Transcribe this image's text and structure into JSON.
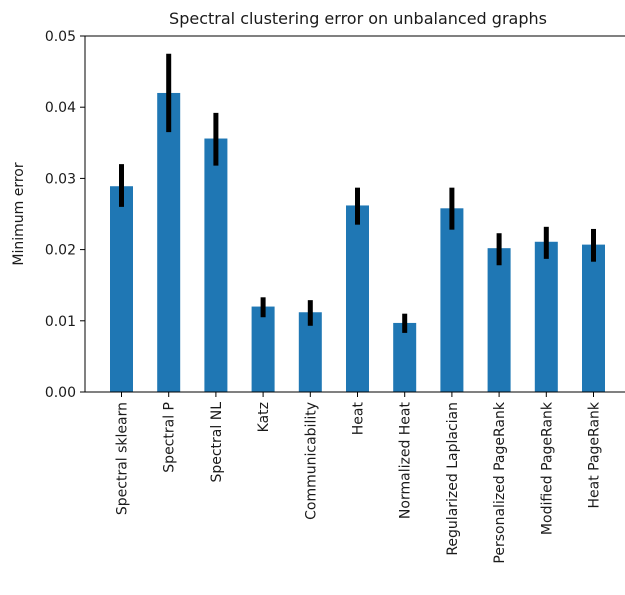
{
  "chart_data": {
    "type": "bar",
    "title": "Spectral clustering error on unbalanced graphs",
    "xlabel": "",
    "ylabel": "Minimum error",
    "ylim": [
      0,
      0.05
    ],
    "yticks": [
      "0.00",
      "0.01",
      "0.02",
      "0.03",
      "0.04",
      "0.05"
    ],
    "categories": [
      "Spectral sklearn",
      "Spectral P",
      "Spectral NL",
      "Katz",
      "Communicability",
      "Heat",
      "Normalized Heat",
      "Regularized Laplacian",
      "Personalized PageRank",
      "Modified PageRank",
      "Heat PageRank"
    ],
    "values": [
      0.0289,
      0.042,
      0.0356,
      0.012,
      0.0112,
      0.0262,
      0.0097,
      0.0258,
      0.0202,
      0.0211,
      0.0207
    ],
    "error_low": [
      0.026,
      0.0365,
      0.0318,
      0.0105,
      0.0093,
      0.0235,
      0.0083,
      0.0228,
      0.0178,
      0.0187,
      0.0183
    ],
    "error_high": [
      0.032,
      0.0475,
      0.0392,
      0.0133,
      0.0129,
      0.0287,
      0.011,
      0.0287,
      0.0223,
      0.0232,
      0.0229
    ],
    "colors": {
      "bar": "#1f77b4",
      "error": "#000000",
      "axis": "#000000"
    },
    "grid": false,
    "legend": "none"
  }
}
